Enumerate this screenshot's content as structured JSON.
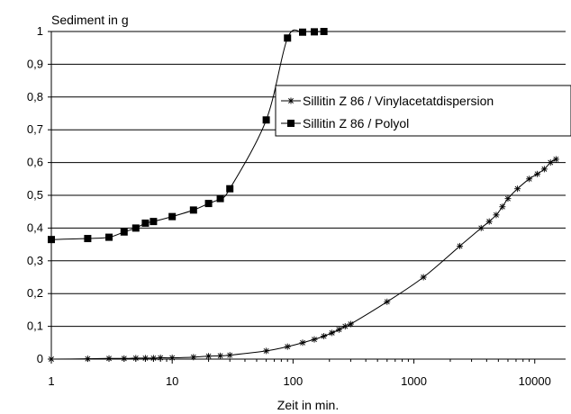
{
  "chart_data": {
    "type": "line",
    "ylabel": "Sediment in g",
    "xlabel": "Zeit in min.",
    "x_scale": "log",
    "xlim": [
      1,
      18000
    ],
    "ylim": [
      0,
      1
    ],
    "x_ticks": [
      1,
      10,
      100,
      1000,
      10000
    ],
    "x_tick_labels": [
      "1",
      "10",
      "100",
      "1000",
      "10000"
    ],
    "y_ticks": [
      0,
      0.1,
      0.2,
      0.3,
      0.4,
      0.5,
      0.6,
      0.7,
      0.8,
      0.9,
      1
    ],
    "y_tick_labels": [
      "0",
      "0,1",
      "0,2",
      "0,3",
      "0,4",
      "0,5",
      "0,6",
      "0,7",
      "0,8",
      "0,9",
      "1"
    ],
    "grid": "horizontal",
    "legend_position": "middle-right",
    "series": [
      {
        "name": "Sillitin Z 86 / Vinylacetatdispersion",
        "marker": "star",
        "color": "#000000",
        "x": [
          1,
          2,
          3,
          4,
          5,
          6,
          7,
          8,
          10,
          15,
          20,
          25,
          30,
          60,
          90,
          120,
          150,
          180,
          210,
          240,
          270,
          300,
          600,
          1200,
          2400,
          3600,
          4200,
          4800,
          5400,
          6000,
          7200,
          9000,
          10500,
          12000,
          13500,
          15000
        ],
        "y": [
          0,
          0.001,
          0.002,
          0.002,
          0.003,
          0.003,
          0.003,
          0.004,
          0.004,
          0.006,
          0.009,
          0.01,
          0.012,
          0.025,
          0.038,
          0.05,
          0.06,
          0.07,
          0.08,
          0.09,
          0.1,
          0.107,
          0.175,
          0.25,
          0.345,
          0.4,
          0.42,
          0.44,
          0.465,
          0.49,
          0.52,
          0.55,
          0.565,
          0.58,
          0.6,
          0.61
        ]
      },
      {
        "name": "Sillitin Z 86 / Polyol",
        "marker": "square",
        "color": "#000000",
        "x": [
          1,
          2,
          3,
          4,
          5,
          6,
          7,
          10,
          15,
          20,
          25,
          30,
          60,
          90,
          120,
          150,
          180
        ],
        "y": [
          0.365,
          0.368,
          0.372,
          0.388,
          0.4,
          0.415,
          0.42,
          0.435,
          0.455,
          0.475,
          0.49,
          0.52,
          0.73,
          0.98,
          0.998,
          0.999,
          1.0
        ]
      }
    ]
  }
}
